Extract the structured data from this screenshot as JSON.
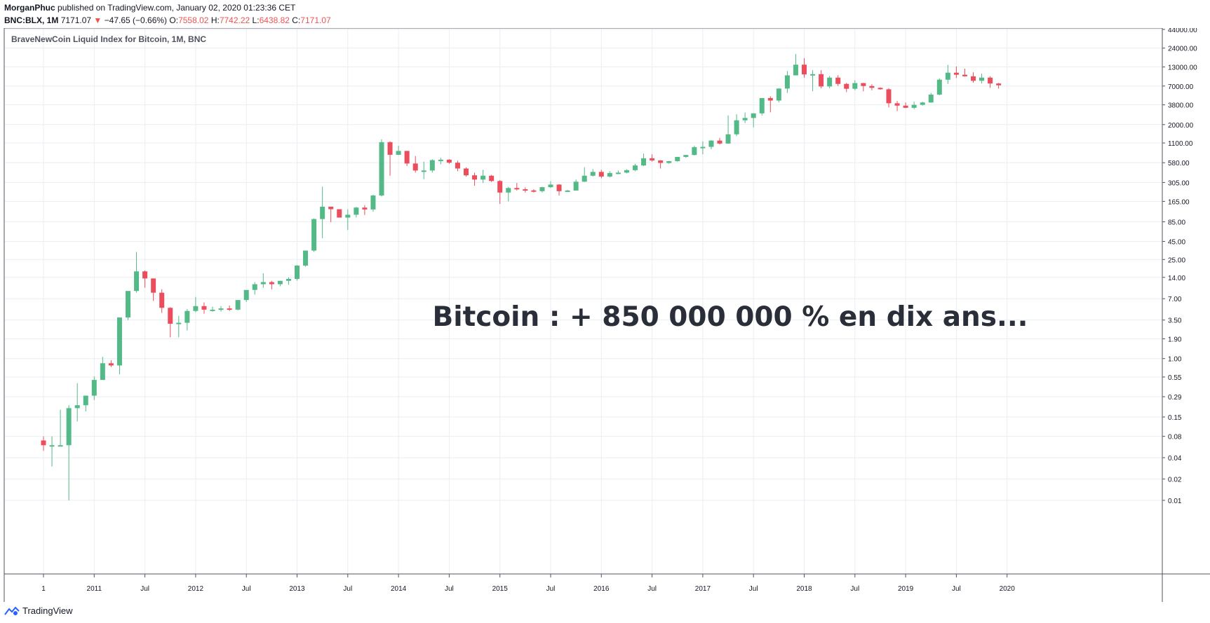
{
  "header": {
    "author": "MorganPhuc",
    "published_text": "published on TradingView.com, January 02, 2020 01:23:36 CET",
    "symbol": "BNC:BLX, 1M",
    "last": "7171.07",
    "change": "−47.65 (−0.66%)",
    "o_label": "O:",
    "o_value": "7558.02",
    "h_label": "H:",
    "h_value": "7742.22",
    "l_label": "L:",
    "l_value": "6438.82",
    "c_label": "C:",
    "c_value": "7171.07"
  },
  "footer": {
    "brand": "TradingView"
  },
  "colors": {
    "up": "#53b987",
    "down": "#eb4d5c",
    "grid": "#e8eef3",
    "text": "#131722"
  },
  "chart_data": {
    "type": "candlestick",
    "title": "BraveNewCoin Liquid Index for Bitcoin, 1M, BNC",
    "annotation": "Bitcoin : + 850 000 000 % en dix ans...",
    "y_scale": "log",
    "y_ticks": [
      "44000.00",
      "24000.00",
      "13000.00",
      "7000.00",
      "3800.00",
      "2000.00",
      "1100.00",
      "580.00",
      "305.00",
      "165.00",
      "85.00",
      "45.00",
      "25.00",
      "14.00",
      "7.00",
      "3.50",
      "1.90",
      "1.00",
      "0.55",
      "0.29",
      "0.15",
      "0.08",
      "0.04",
      "0.02",
      "0.01"
    ],
    "y_tick_values": [
      44000,
      24000,
      13000,
      7000,
      3800,
      2000,
      1100,
      580,
      305,
      165,
      85,
      45,
      25,
      14,
      7,
      3.5,
      1.9,
      1,
      0.55,
      0.29,
      0.15,
      0.08,
      0.04,
      0.02,
      0.01
    ],
    "x_ticks": [
      {
        "label": "1",
        "i": 0
      },
      {
        "label": "2011",
        "i": 6
      },
      {
        "label": "Jul",
        "i": 12
      },
      {
        "label": "2012",
        "i": 18
      },
      {
        "label": "Jul",
        "i": 24
      },
      {
        "label": "2013",
        "i": 30
      },
      {
        "label": "Jul",
        "i": 36
      },
      {
        "label": "2014",
        "i": 42
      },
      {
        "label": "Jul",
        "i": 48
      },
      {
        "label": "2015",
        "i": 54
      },
      {
        "label": "Jul",
        "i": 60
      },
      {
        "label": "2016",
        "i": 66
      },
      {
        "label": "Jul",
        "i": 72
      },
      {
        "label": "2017",
        "i": 78
      },
      {
        "label": "Jul",
        "i": 84
      },
      {
        "label": "2018",
        "i": 90
      },
      {
        "label": "Jul",
        "i": 96
      },
      {
        "label": "2019",
        "i": 102
      },
      {
        "label": "Jul",
        "i": 108
      },
      {
        "label": "2020",
        "i": 114
      }
    ],
    "candles": [
      [
        0.07,
        0.08,
        0.05,
        0.06
      ],
      [
        0.06,
        0.08,
        0.03,
        0.06
      ],
      [
        0.06,
        0.19,
        0.06,
        0.06
      ],
      [
        0.06,
        0.22,
        0.01,
        0.2
      ],
      [
        0.2,
        0.45,
        0.13,
        0.22
      ],
      [
        0.22,
        0.27,
        0.18,
        0.3
      ],
      [
        0.3,
        0.56,
        0.26,
        0.5
      ],
      [
        0.5,
        1.06,
        0.5,
        0.86
      ],
      [
        0.86,
        0.95,
        0.76,
        0.8
      ],
      [
        0.8,
        1.1,
        0.6,
        3.8
      ],
      [
        3.8,
        4.0,
        3.5,
        9.0
      ],
      [
        9.0,
        31.9,
        8.5,
        17.0
      ],
      [
        17.0,
        17.5,
        10.0,
        13.5
      ],
      [
        13.5,
        13.5,
        6.5,
        8.5
      ],
      [
        8.5,
        9.5,
        4.4,
        5.2
      ],
      [
        5.2,
        5.3,
        2.0,
        3.1
      ],
      [
        3.1,
        4.0,
        2.0,
        3.2
      ],
      [
        3.2,
        5.0,
        2.5,
        4.7
      ],
      [
        4.7,
        7.4,
        4.5,
        5.5
      ],
      [
        5.5,
        6.2,
        4.3,
        4.9
      ],
      [
        4.9,
        5.4,
        4.6,
        4.9
      ],
      [
        4.9,
        5.5,
        4.6,
        5.1
      ],
      [
        5.1,
        5.6,
        4.7,
        4.9
      ],
      [
        4.9,
        6.6,
        4.8,
        6.7
      ],
      [
        6.7,
        7.8,
        6.3,
        9.3
      ],
      [
        9.3,
        12.0,
        8.0,
        11.2
      ],
      [
        11.2,
        16.0,
        10.0,
        12.0
      ],
      [
        12.0,
        12.5,
        9.5,
        11.2
      ],
      [
        11.2,
        12.5,
        10.5,
        12.5
      ],
      [
        12.5,
        14.0,
        11.0,
        13.3
      ],
      [
        13.3,
        20.8,
        12.6,
        20.5
      ],
      [
        20.5,
        33.0,
        19.8,
        33.4
      ],
      [
        33.4,
        95.0,
        32.0,
        93.0
      ],
      [
        93.0,
        266.0,
        50.0,
        139.0
      ],
      [
        139.0,
        139.0,
        84.0,
        128.0
      ],
      [
        128.0,
        128.0,
        98.0,
        97.5
      ],
      [
        97.5,
        128.0,
        65.0,
        107.0
      ],
      [
        107.0,
        138.0,
        98.0,
        135.0
      ],
      [
        135.0,
        146.0,
        106.0,
        127.0
      ],
      [
        127.0,
        204.0,
        118.0,
        200.0
      ],
      [
        200.0,
        1242.0,
        193.0,
        1130.0
      ],
      [
        1130.0,
        1163.0,
        380.0,
        750.0
      ],
      [
        750.0,
        1010.0,
        744.0,
        850.0
      ],
      [
        850.0,
        850.0,
        520.0,
        565.0
      ],
      [
        565.0,
        720.0,
        420.0,
        450.0
      ],
      [
        450.0,
        600.0,
        340.0,
        450.0
      ],
      [
        450.0,
        650.0,
        420.0,
        630.0
      ],
      [
        630.0,
        680.0,
        550.0,
        640.0
      ],
      [
        640.0,
        650.0,
        560.0,
        580.0
      ],
      [
        580.0,
        620.0,
        440.0,
        480.0
      ],
      [
        480.0,
        500.0,
        370.0,
        385.0
      ],
      [
        385.0,
        420.0,
        275.0,
        335.0
      ],
      [
        335.0,
        460.0,
        300.0,
        380.0
      ],
      [
        380.0,
        390.0,
        310.0,
        320.0
      ],
      [
        320.0,
        330.0,
        152.0,
        220.0
      ],
      [
        220.0,
        265.0,
        165.0,
        255.0
      ],
      [
        255.0,
        300.0,
        235.0,
        245.0
      ],
      [
        245.0,
        260.0,
        220.0,
        236.0
      ],
      [
        236.0,
        245.0,
        220.0,
        230.0
      ],
      [
        230.0,
        265.0,
        220.0,
        262.0
      ],
      [
        262.0,
        318.0,
        255.0,
        285.0
      ],
      [
        285.0,
        290.0,
        200.0,
        230.0
      ],
      [
        230.0,
        240.0,
        225.0,
        235.0
      ],
      [
        235.0,
        336.0,
        235.0,
        313.0
      ],
      [
        313.0,
        500.0,
        310.0,
        380.0
      ],
      [
        380.0,
        470.0,
        370.0,
        430.0
      ],
      [
        430.0,
        460.0,
        350.0,
        370.0
      ],
      [
        370.0,
        440.0,
        360.0,
        415.0
      ],
      [
        415.0,
        450.0,
        400.0,
        420.0
      ],
      [
        420.0,
        470.0,
        410.0,
        455.0
      ],
      [
        455.0,
        560.0,
        440.0,
        530.0
      ],
      [
        530.0,
        780.0,
        520.0,
        670.0
      ],
      [
        670.0,
        760.0,
        600.0,
        625.0
      ],
      [
        625.0,
        630.0,
        480.0,
        575.0
      ],
      [
        575.0,
        615.0,
        560.0,
        610.0
      ],
      [
        610.0,
        660.0,
        600.0,
        700.0
      ],
      [
        700.0,
        750.0,
        680.0,
        745.0
      ],
      [
        745.0,
        1000.0,
        735.0,
        960.0
      ],
      [
        960.0,
        1160.0,
        760.0,
        970.0
      ],
      [
        970.0,
        1200.0,
        900.0,
        1190.0
      ],
      [
        1190.0,
        1300.0,
        1050.0,
        1080.0
      ],
      [
        1080.0,
        2700.0,
        1080.0,
        1460.0
      ],
      [
        1460.0,
        2800.0,
        1380.0,
        2300.0
      ],
      [
        2300.0,
        2960.0,
        2100.0,
        2480.0
      ],
      [
        2480.0,
        2900.0,
        1830.0,
        2880.0
      ],
      [
        2880.0,
        4700.0,
        2690.0,
        4740.0
      ],
      [
        4740.0,
        5000.0,
        2980.0,
        4370.0
      ],
      [
        4370.0,
        6470.0,
        4120.0,
        6450.0
      ],
      [
        6450.0,
        11400.0,
        5600.0,
        9900.0
      ],
      [
        9900.0,
        19800.0,
        9900.0,
        14000.0
      ],
      [
        14000.0,
        17200.0,
        9200.0,
        10200.0
      ],
      [
        10200.0,
        11700.0,
        5920.0,
        10300.0
      ],
      [
        10300.0,
        11700.0,
        6500.0,
        6900.0
      ],
      [
        6900.0,
        9700.0,
        6500.0,
        9200.0
      ],
      [
        9200.0,
        9950.0,
        7000.0,
        7500.0
      ],
      [
        7500.0,
        7750.0,
        5750.0,
        6400.0
      ],
      [
        6400.0,
        8450.0,
        6100.0,
        7700.0
      ],
      [
        7700.0,
        7750.0,
        5900.0,
        7000.0
      ],
      [
        7000.0,
        7400.0,
        6100.0,
        6600.0
      ],
      [
        6600.0,
        6700.0,
        6200.0,
        6300.0
      ],
      [
        6300.0,
        6530.0,
        3500.0,
        4000.0
      ],
      [
        4000.0,
        4300.0,
        3100.0,
        3700.0
      ],
      [
        3700.0,
        4100.0,
        3400.0,
        3450.0
      ],
      [
        3450.0,
        4200.0,
        3300.0,
        3800.0
      ],
      [
        3800.0,
        4200.0,
        3700.0,
        4100.0
      ],
      [
        4100.0,
        5600.0,
        4050.0,
        5300.0
      ],
      [
        5300.0,
        9000.0,
        5200.0,
        8600.0
      ],
      [
        8600.0,
        13900.0,
        7500.0,
        10800.0
      ],
      [
        10800.0,
        13200.0,
        9100.0,
        10100.0
      ],
      [
        10100.0,
        12300.0,
        9500.0,
        9600.0
      ],
      [
        9600.0,
        10900.0,
        7800.0,
        8300.0
      ],
      [
        8300.0,
        10500.0,
        7600.0,
        9200.0
      ],
      [
        9200.0,
        9600.0,
        6600.0,
        7600.0
      ],
      [
        7600.0,
        7750.0,
        6440.0,
        7170.0
      ]
    ]
  }
}
